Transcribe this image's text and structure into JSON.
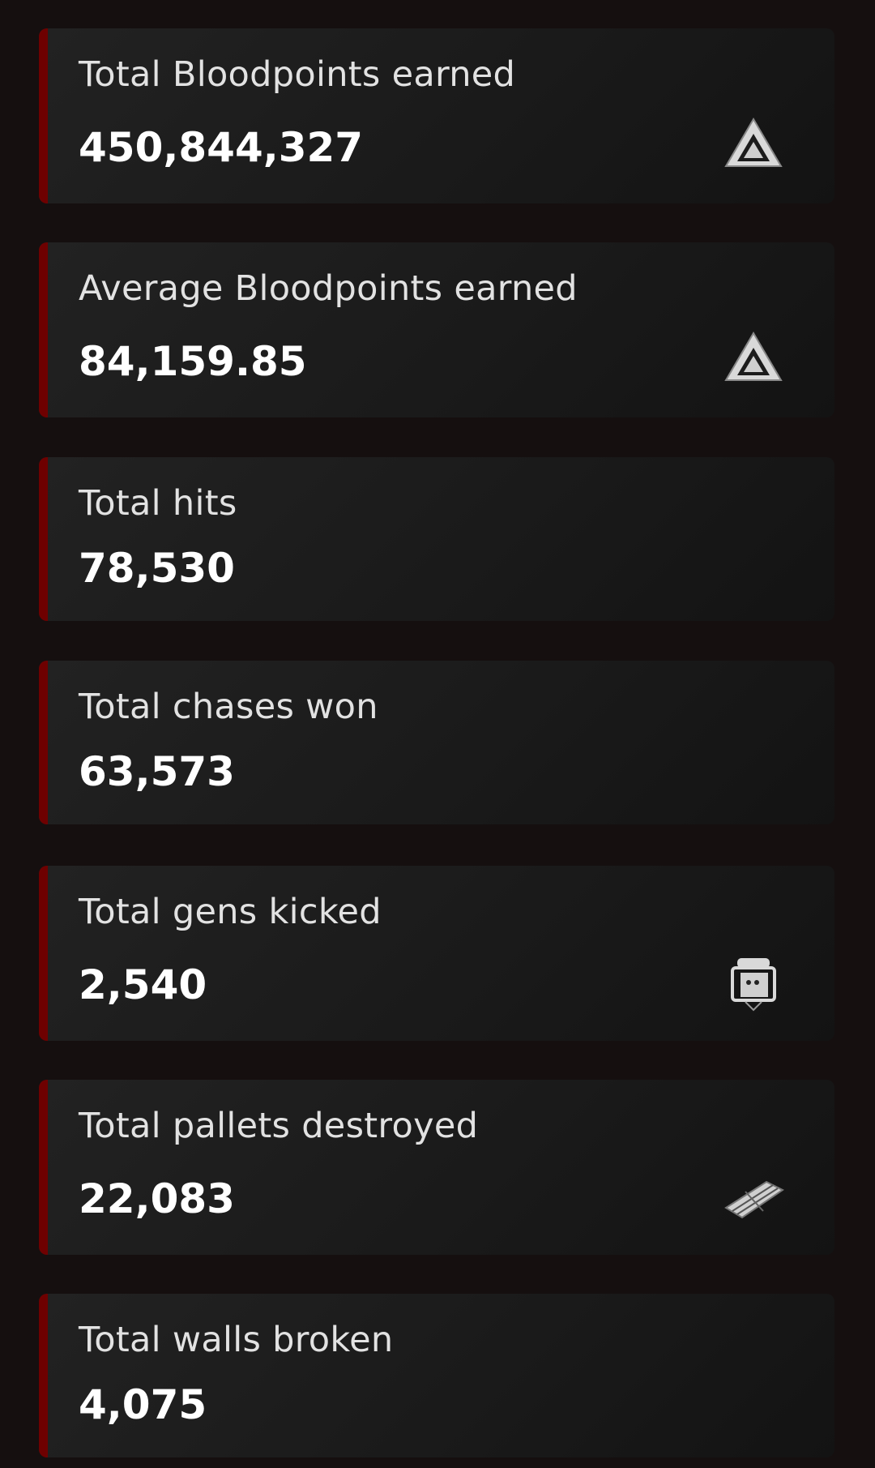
{
  "stats": [
    {
      "label": "Total Bloodpoints earned",
      "value": "450,844,327",
      "icon": "bloodpoints-icon"
    },
    {
      "label": "Average Bloodpoints earned",
      "value": "84,159.85",
      "icon": "bloodpoints-icon"
    },
    {
      "label": "Total hits",
      "value": "78,530",
      "icon": null
    },
    {
      "label": "Total chases won",
      "value": "63,573",
      "icon": null
    },
    {
      "label": "Total gens kicked",
      "value": "2,540",
      "icon": "generator-icon"
    },
    {
      "label": "Total pallets destroyed",
      "value": "22,083",
      "icon": "pallet-icon"
    },
    {
      "label": "Total walls broken",
      "value": "4,075",
      "icon": null
    }
  ],
  "colors": {
    "accent": "#6e0000",
    "background": "#150f0f",
    "card": "#1e1e1e"
  }
}
